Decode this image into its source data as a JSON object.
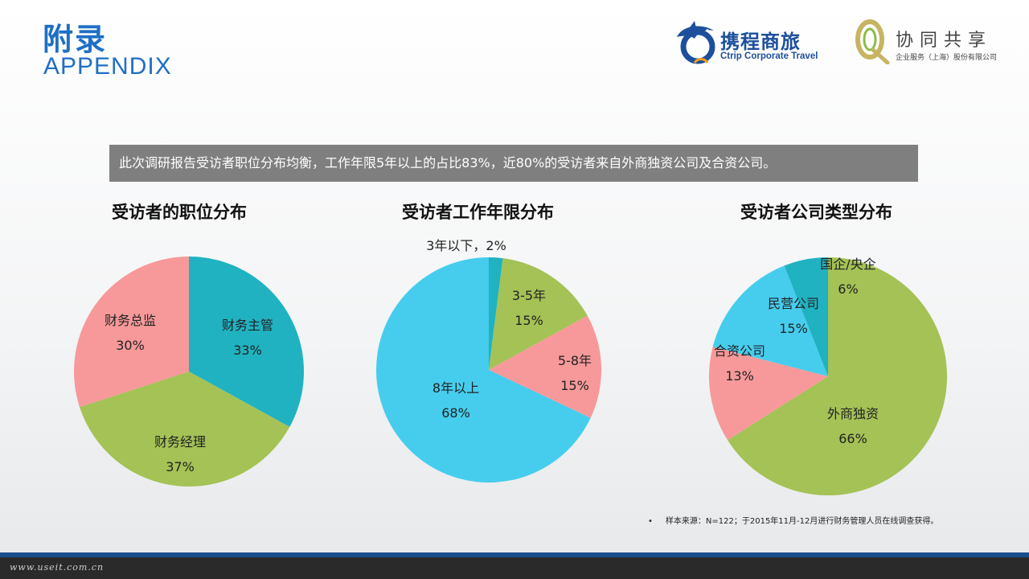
{
  "header": {
    "title_cn": "附录",
    "title_en": "APPENDIX"
  },
  "logos": {
    "ctrip_name_cn": "携程商旅",
    "ctrip_name_en": "Ctrip Corporate Travel",
    "xietong_name_cn": "协同共享",
    "xietong_sub": "企业服务（上海）股份有限公司"
  },
  "summary": "此次调研报告受访者职位分布均衡，工作年限5年以上的占比83%，近80%的受访者来自外商独资公司及合资公司。",
  "chart_data": [
    {
      "type": "pie",
      "title": "受访者的职位分布",
      "slices": [
        {
          "label": "财务主管",
          "value": 33,
          "pct": "33%",
          "color": "#20b2c1"
        },
        {
          "label": "财务经理",
          "value": 37,
          "pct": "37%",
          "color": "#a4c256"
        },
        {
          "label": "财务总监",
          "value": 30,
          "pct": "30%",
          "color": "#f7999a"
        }
      ]
    },
    {
      "type": "pie",
      "title": "受访者工作年限分布",
      "slices": [
        {
          "label": "3年以下，2%",
          "value": 2,
          "pct": "",
          "color": "#20b2c1"
        },
        {
          "label": "3-5年",
          "value": 15,
          "pct": "15%",
          "color": "#a4c256"
        },
        {
          "label": "5-8年",
          "value": 15,
          "pct": "15%",
          "color": "#f7999a"
        },
        {
          "label": "8年以上",
          "value": 68,
          "pct": "68%",
          "color": "#46cdee"
        }
      ]
    },
    {
      "type": "pie",
      "title": "受访者公司类型分布",
      "slices": [
        {
          "label": "外商独资",
          "value": 66,
          "pct": "66%",
          "color": "#a4c256"
        },
        {
          "label": "合资公司",
          "value": 13,
          "pct": "13%",
          "color": "#f7999a"
        },
        {
          "label": "民营公司",
          "value": 15,
          "pct": "15%",
          "color": "#46cdee"
        },
        {
          "label": "国企/央企",
          "value": 6,
          "pct": "6%",
          "color": "#20b2c1"
        }
      ]
    }
  ],
  "footnote": {
    "bullet": "•",
    "text": "样本来源：N=122；于2015年11月-12月进行财务管理人员在线调查获得。"
  },
  "watermark": "www.useit.com.cn"
}
